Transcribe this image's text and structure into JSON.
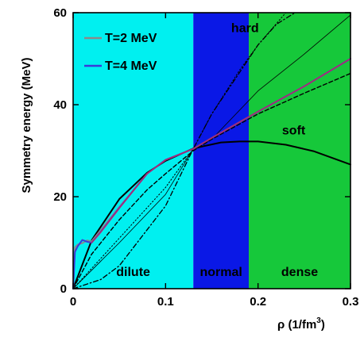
{
  "chart_data": {
    "type": "line",
    "title": "",
    "xlabel": "ρ  (1/fm",
    "xlabel_sup": "3",
    "xlabel_tail": ")",
    "ylabel": "Symmetry energy   (MeV)",
    "xlim": [
      0,
      0.3
    ],
    "ylim": [
      0,
      60
    ],
    "grid": false,
    "legend_placement": "top-left",
    "x_ticks": [
      0,
      0.1,
      0.2,
      0.3
    ],
    "x_tick_labels": [
      "0",
      "0.1",
      "0.2",
      "0.3"
    ],
    "y_ticks": [
      0,
      20,
      40,
      60
    ],
    "y_tick_labels": [
      "0",
      "20",
      "40",
      "60"
    ],
    "regions": [
      {
        "label": "dilute",
        "x0": 0,
        "x1": 0.13,
        "color": "#00f0f0"
      },
      {
        "label": "normal",
        "x0": 0.13,
        "x1": 0.19,
        "color": "#0a18e6"
      },
      {
        "label": "dense",
        "x0": 0.19,
        "x1": 0.3,
        "color": "#16c83a"
      }
    ],
    "series": [
      {
        "name": "T=2 MeV",
        "color": "#8a8a8a",
        "width": 2,
        "x": [
          0,
          0.002,
          0.005,
          0.01,
          0.015,
          0.02,
          0.03,
          0.05,
          0.08,
          0.1,
          0.13,
          0.15,
          0.2,
          0.25,
          0.3
        ],
        "y": [
          0,
          9.0,
          9.6,
          9.9,
          10.5,
          10.3,
          12.8,
          17.8,
          25.0,
          28.0,
          30.4,
          32.8,
          38.5,
          44.0,
          50.0
        ]
      },
      {
        "name": "T=4 MeV",
        "color": "#3a3ad8",
        "width": 2,
        "x": [
          0,
          0.002,
          0.005,
          0.01,
          0.015,
          0.02,
          0.03,
          0.05,
          0.08,
          0.1,
          0.13,
          0.15,
          0.2,
          0.25,
          0.3
        ],
        "y": [
          0,
          8.0,
          9.2,
          10.6,
          10.2,
          10.0,
          12.4,
          17.6,
          25.0,
          28.0,
          30.4,
          32.8,
          38.5,
          44.0,
          50.0
        ]
      },
      {
        "color": "#b4286a",
        "width": 1.5,
        "x": [
          0.02,
          0.03,
          0.05,
          0.08,
          0.1,
          0.13,
          0.15,
          0.2,
          0.25,
          0.3
        ],
        "y": [
          10.0,
          12.3,
          17.5,
          25.0,
          28.0,
          30.4,
          32.8,
          38.5,
          44.0,
          50.0
        ]
      },
      {
        "color": "#000000",
        "width": 2,
        "dash": "",
        "label": "soft",
        "x": [
          0,
          0.02,
          0.05,
          0.08,
          0.1,
          0.13,
          0.16,
          0.18,
          0.2,
          0.23,
          0.26,
          0.3
        ],
        "y": [
          0,
          10.5,
          19.5,
          25.2,
          27.8,
          30.5,
          31.8,
          32.0,
          32.0,
          31.3,
          29.9,
          27.0
        ]
      },
      {
        "color": "#000000",
        "width": 1.4,
        "dash": "5,3",
        "x": [
          0,
          0.02,
          0.05,
          0.08,
          0.1,
          0.13,
          0.15,
          0.2,
          0.25,
          0.3
        ],
        "y": [
          0,
          7.5,
          15.0,
          21.5,
          25.0,
          30.0,
          32.5,
          38.0,
          42.5,
          46.8
        ]
      },
      {
        "color": "#000000",
        "width": 0.8,
        "dash": "",
        "x": [
          0,
          0.05,
          0.1,
          0.13,
          0.15,
          0.2,
          0.25,
          0.3
        ],
        "y": [
          0,
          10.0,
          20.5,
          30.4,
          32.5,
          43.0,
          51.0,
          59.5
        ]
      },
      {
        "color": "#000000",
        "width": 1.0,
        "dash": "1.5,2.5",
        "x": [
          0,
          0.05,
          0.1,
          0.13,
          0.15,
          0.18,
          0.2,
          0.23
        ],
        "y": [
          0,
          11.0,
          22.0,
          30.4,
          38.0,
          47.5,
          53.0,
          60.0
        ]
      },
      {
        "color": "#000000",
        "width": 1.3,
        "dash": "6,3,1.5,3",
        "label": "hard",
        "x": [
          0,
          0.03,
          0.05,
          0.1,
          0.13,
          0.15,
          0.18,
          0.2,
          0.22,
          0.24
        ],
        "y": [
          0,
          2.0,
          5.0,
          18.0,
          30.4,
          38.0,
          47.0,
          53.0,
          57.5,
          60.0
        ]
      }
    ],
    "annotations": [
      {
        "text": "soft",
        "x": 0.226,
        "y": 33.5
      },
      {
        "text": "hard",
        "x": 0.171,
        "y": 55.8
      }
    ]
  }
}
